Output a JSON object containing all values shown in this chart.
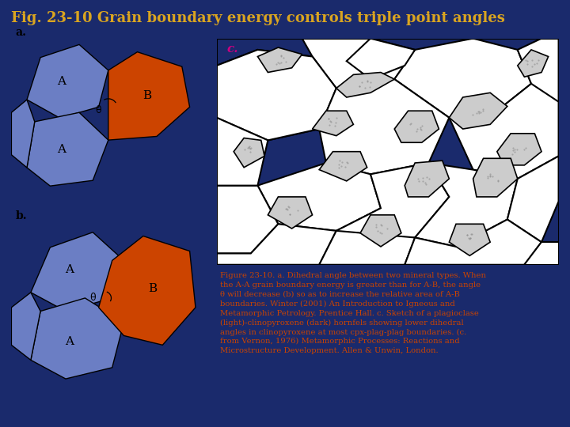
{
  "title": "Fig. 23-10 Grain boundary energy controls triple point angles",
  "title_color": "#DAA520",
  "title_fontsize": 13,
  "bg_color": "#1a2a6c",
  "panel_bg": "#FFFFFF",
  "blue_color": "#6B7EC4",
  "orange_color": "#CC4400",
  "caption_color": "#CC4400",
  "caption_text": "Figure 23-10. a. Dihedral angle between two mineral types. When\nthe A-A grain boundary energy is greater than for A-B, the angle\nθ will decrease (b) so as to increase the relative area of A-B\nboundaries. Winter (2001) An Introduction to Igneous and\nMetamorphic Petrology. Prentice Hall. c. Sketch of a plagioclase\n(light)-clinopyroxene (dark) hornfels showing lower dihedral\nangles in clinopyroxene at most cpx-plag-plag boundaries. (c.\nfrom Vernon, 1976) Metamorphic Processes: Reactions and\nMicrostructure Development. Allen & Unwin, London.",
  "panel_c_label": "c.",
  "panel_a_label": "a.",
  "panel_b_label": "b.",
  "panel_c_label_color": "#CC0080"
}
